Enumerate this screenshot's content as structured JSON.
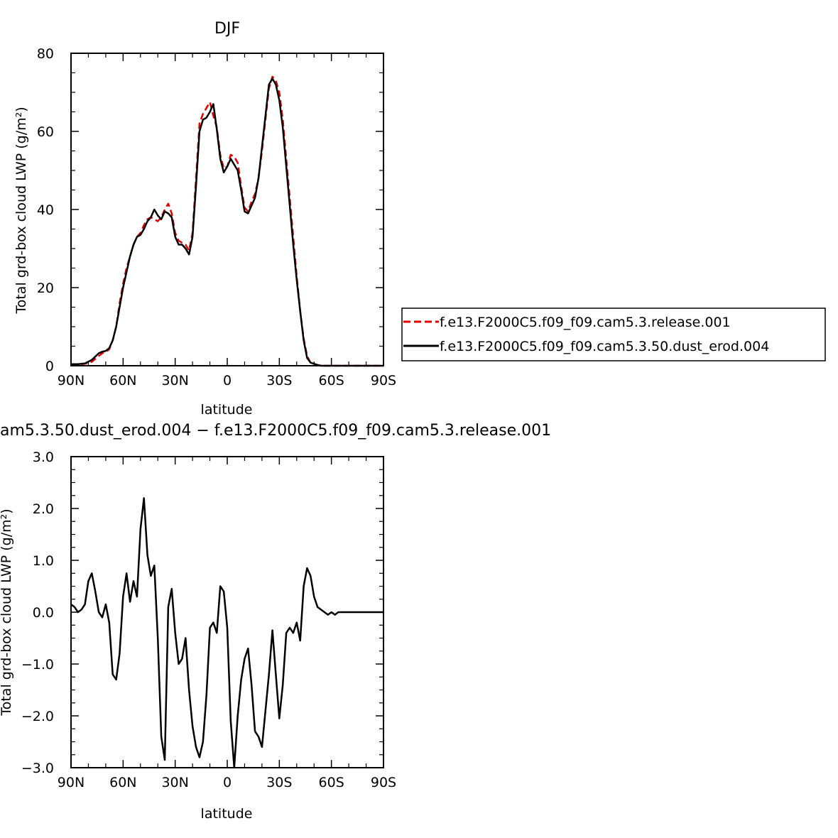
{
  "chart_data": [
    {
      "type": "line",
      "title": "DJF",
      "xlabel": "latitude",
      "ylabel": "Total grd-box cloud LWP (g/m²)",
      "xlim": [
        90,
        -90
      ],
      "ylim": [
        0,
        80
      ],
      "x_ticks": [
        90,
        60,
        30,
        0,
        -30,
        -60,
        -90
      ],
      "x_tick_labels": [
        "90N",
        "60N",
        "30N",
        "0",
        "30S",
        "60S",
        "90S"
      ],
      "y_ticks": [
        0,
        20,
        40,
        60,
        80
      ],
      "y_tick_labels": [
        "0",
        "20",
        "40",
        "60",
        "80"
      ],
      "legend": "right",
      "series": [
        {
          "name": "f.e13.F2000C5.f09_f09.cam5.3.release.001",
          "color": "#e60000",
          "style": "dashed",
          "x": [
            90,
            86,
            82,
            78,
            74,
            72,
            70,
            68,
            66,
            64,
            62,
            60,
            58,
            56,
            54,
            52,
            50,
            48,
            46,
            44,
            42,
            40,
            38,
            36,
            34,
            32,
            30,
            28,
            26,
            24,
            22,
            20,
            18,
            16,
            14,
            12,
            10,
            8,
            6,
            4,
            2,
            0,
            -2,
            -4,
            -6,
            -8,
            -10,
            -12,
            -14,
            -16,
            -18,
            -20,
            -22,
            -24,
            -26,
            -28,
            -30,
            -32,
            -34,
            -36,
            -38,
            -40,
            -42,
            -44,
            -46,
            -48,
            -50,
            -52,
            -54,
            -56,
            -58,
            -60,
            -62,
            -64,
            -66,
            -68,
            -70,
            -72,
            -74,
            -76,
            -78,
            -80,
            -82,
            -84,
            -86,
            -88,
            -90
          ],
          "values": [
            0.3,
            0.3,
            0.5,
            1.0,
            2.5,
            3.2,
            3.5,
            4.2,
            6.5,
            10,
            16,
            21,
            25,
            28,
            31,
            33,
            34,
            36,
            37.5,
            38,
            37.5,
            37,
            38,
            40,
            41.5,
            39,
            34,
            32,
            31.5,
            31,
            29.5,
            34,
            48,
            62,
            64.5,
            66,
            67.5,
            64,
            61,
            54,
            50.5,
            51,
            54,
            53.5,
            52,
            46,
            40.5,
            39.5,
            42,
            44,
            48,
            55,
            63,
            71,
            74,
            73,
            70,
            63,
            53,
            43,
            33,
            23,
            14,
            7,
            2.5,
            0.8,
            0.5,
            0.2,
            0,
            0,
            0,
            0,
            0,
            0,
            0,
            0,
            0,
            0,
            0,
            0,
            0,
            0,
            0,
            0,
            0,
            0,
            0
          ]
        },
        {
          "name": "f.e13.F2000C5.f09_f09.cam5.3.50.dust_erod.004",
          "color": "#000000",
          "style": "solid",
          "x": [
            90,
            86,
            82,
            78,
            74,
            72,
            70,
            68,
            66,
            64,
            62,
            60,
            58,
            56,
            54,
            52,
            50,
            48,
            46,
            44,
            42,
            40,
            38,
            36,
            34,
            32,
            30,
            28,
            26,
            24,
            22,
            20,
            18,
            16,
            14,
            12,
            10,
            8,
            6,
            4,
            2,
            0,
            -2,
            -4,
            -6,
            -8,
            -10,
            -12,
            -14,
            -16,
            -18,
            -20,
            -22,
            -24,
            -26,
            -28,
            -30,
            -32,
            -34,
            -36,
            -38,
            -40,
            -42,
            -44,
            -46,
            -48,
            -50,
            -52,
            -54,
            -56,
            -58,
            -60,
            -62,
            -64,
            -66,
            -68,
            -70,
            -72,
            -74,
            -76,
            -78,
            -80,
            -82,
            -84,
            -86,
            -88,
            -90
          ],
          "values": [
            0.4,
            0.4,
            0.6,
            1.5,
            3.2,
            3.6,
            3.8,
            4.5,
            6.5,
            10,
            15,
            20,
            24,
            28,
            31,
            33,
            33.5,
            35,
            37,
            38,
            40,
            38.5,
            37.5,
            39.5,
            39,
            38,
            33,
            31,
            31,
            30,
            28.5,
            33,
            46,
            60,
            63,
            63.5,
            65,
            67,
            60.5,
            53,
            49.5,
            51,
            53,
            51.5,
            50,
            45,
            39.5,
            39,
            41,
            43,
            48,
            56,
            64,
            72,
            73.5,
            72,
            68,
            61,
            51,
            41,
            31,
            22,
            14,
            6.5,
            2,
            0.8,
            0.5,
            0.2,
            0,
            0,
            0,
            0,
            0,
            0,
            0,
            0,
            0,
            0,
            0,
            0,
            0,
            0,
            0,
            0,
            0,
            0,
            0
          ]
        }
      ]
    },
    {
      "type": "line",
      "title": "am5.3.50.dust_erod.004 − f.e13.F2000C5.f09_f09.cam5.3.release.001",
      "xlabel": "latitude",
      "ylabel": "Total grd-box cloud LWP (g/m²)",
      "xlim": [
        90,
        -90
      ],
      "ylim": [
        -3,
        3
      ],
      "x_ticks": [
        90,
        60,
        30,
        0,
        -30,
        -60,
        -90
      ],
      "x_tick_labels": [
        "90N",
        "60N",
        "30N",
        "0",
        "30S",
        "60S",
        "90S"
      ],
      "y_ticks": [
        3,
        2,
        1,
        0,
        -1,
        -2,
        -3
      ],
      "y_tick_labels": [
        "3.0",
        "2.0",
        "1.0",
        "0.0",
        "−1.0",
        "−2.0",
        "−3.0"
      ],
      "series": [
        {
          "color": "#000000",
          "style": "solid",
          "x": [
            90,
            88,
            86,
            84,
            82,
            80,
            78,
            76,
            74,
            72,
            70,
            68,
            66,
            64,
            62,
            60,
            58,
            56,
            54,
            52,
            50,
            48,
            46,
            44,
            42,
            40,
            38,
            36,
            34,
            32,
            30,
            28,
            26,
            24,
            22,
            20,
            18,
            16,
            14,
            12,
            10,
            8,
            6,
            4,
            2,
            0,
            -2,
            -4,
            -6,
            -8,
            -10,
            -12,
            -14,
            -16,
            -18,
            -20,
            -22,
            -24,
            -26,
            -28,
            -30,
            -32,
            -34,
            -36,
            -38,
            -40,
            -42,
            -44,
            -46,
            -48,
            -50,
            -52,
            -54,
            -56,
            -58,
            -60,
            -62,
            -64,
            -66,
            -68,
            -70,
            -72,
            -74,
            -76,
            -78,
            -80,
            -82,
            -84,
            -86,
            -88,
            -90
          ],
          "values": [
            0.15,
            0.1,
            0,
            0.05,
            0.15,
            0.6,
            0.75,
            0.4,
            0,
            -0.1,
            0.15,
            -0.2,
            -1.2,
            -1.3,
            -0.8,
            0.3,
            0.75,
            0.2,
            0.6,
            0.3,
            1.6,
            2.2,
            1.1,
            0.7,
            0.9,
            -0.5,
            -2.4,
            -2.85,
            0.1,
            0.45,
            -0.4,
            -1.0,
            -0.9,
            -0.5,
            -1.5,
            -2.2,
            -2.6,
            -2.8,
            -2.5,
            -1.6,
            -0.3,
            -0.2,
            -0.4,
            0.5,
            0.4,
            -0.3,
            -2.1,
            -3.0,
            -2.0,
            -1.3,
            -0.9,
            -0.7,
            -1.4,
            -2.3,
            -2.4,
            -2.6,
            -1.9,
            -1.2,
            -0.35,
            -1.2,
            -2.05,
            -1.4,
            -0.4,
            -0.3,
            -0.4,
            -0.2,
            -0.55,
            0.5,
            0.85,
            0.7,
            0.3,
            0.1,
            0.05,
            0,
            -0.05,
            0,
            -0.05,
            0,
            0,
            0,
            0,
            0,
            0,
            0,
            0,
            0,
            0,
            0,
            0,
            0,
            0
          ]
        }
      ]
    }
  ]
}
